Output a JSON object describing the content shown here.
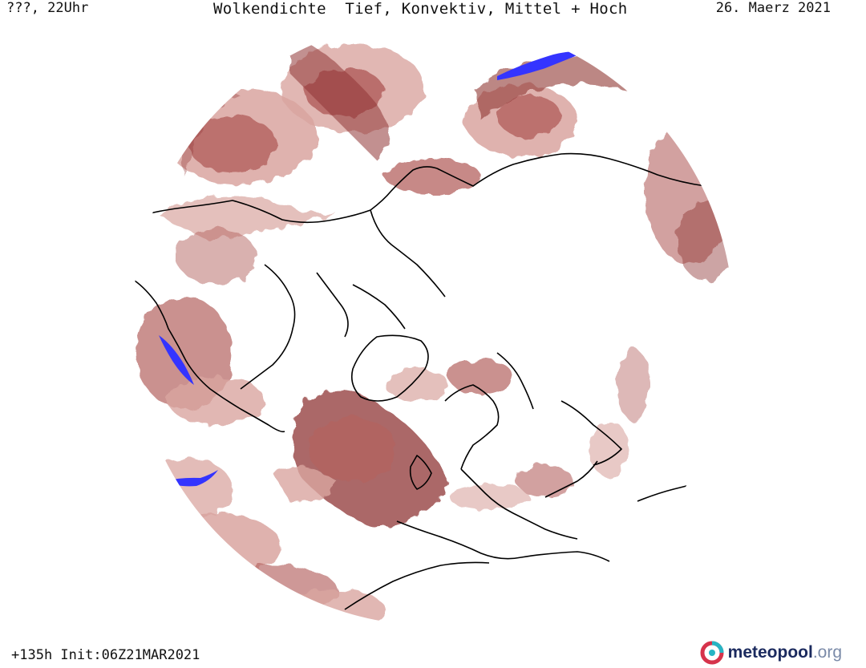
{
  "header": {
    "left": "???, 22Uhr",
    "title": "Wolkendichte  Tief, Konvektiv, Mittel + Hoch",
    "right": "26. Maerz 2021"
  },
  "footer": {
    "run": "+135h Init:06Z21MAR2021",
    "logo_main": "meteopool",
    "logo_tld": ".org"
  },
  "colors": {
    "cloud_dark": "#8f3534",
    "cloud_mid": "#b4625f",
    "cloud_light": "#d9a5a0",
    "convective": "#3434ff",
    "coastline": "#000000",
    "logo_ring_red": "#d6334b",
    "logo_ring_teal": "#27b5c4"
  },
  "map": {
    "projection": "polar stereographic, north pole",
    "layer": "cloud density (low, convective, mid + high)"
  }
}
